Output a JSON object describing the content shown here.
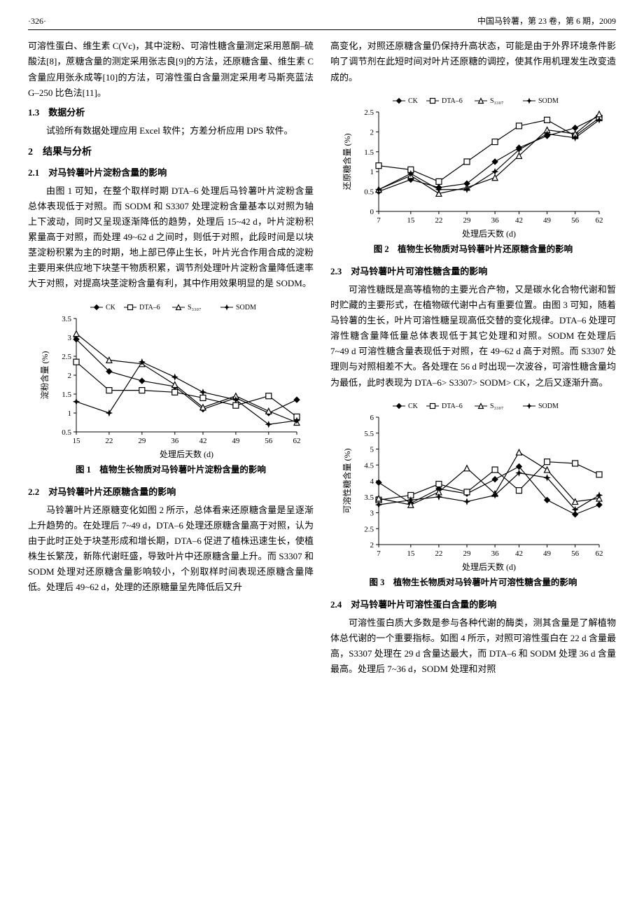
{
  "header": {
    "page_num": "·326·",
    "journal": "中国马铃薯，第 23 卷，第 6 期，2009"
  },
  "left": {
    "p1": "可溶性蛋白、维生素 C(Vc)，其中淀粉、可溶性糖含量测定采用蒽酮–硫酸法[8]，蔗糖含量的测定采用张志良[9]的方法，还原糖含量、维生素 C 含量应用张永成等[10]的方法，可溶性蛋白含量测定采用考马斯亮蓝法 G–250 比色法[11]。",
    "h13": "1.3　数据分析",
    "p2": "试验所有数据处理应用 Excel 软件；方差分析应用 DPS 软件。",
    "h2": "2　结果与分析",
    "h21": "2.1　对马铃薯叶片淀粉含量的影响",
    "p3": "由图 1 可知，在整个取样时期 DTA–6 处理后马铃薯叶片淀粉含量总体表现低于对照。而 SODM 和 S3307 处理淀粉含量基本以对照为轴上下波动，同时又呈现逐渐降低的趋势，处理后 15~42 d，叶片淀粉积累量高于对照，而处理 49~62 d 之间时，则低于对照，此段时间是以块茎淀粉积累为主的时期，地上部已停止生长，叶片光合作用合成的淀粉主要用来供应地下块茎干物质积累，调节剂处理叶片淀粉含量降低速率大于对照，对提高块茎淀粉含量有利，其中作用效果明显的是 SODM。",
    "fig1cap": "图 1　植物生长物质对马铃薯叶片淀粉含量的影响",
    "h22": "2.2　对马铃薯叶片还原糖含量的影响",
    "p4": "马铃薯叶片还原糖变化如图 2 所示，总体看来还原糖含量是呈逐渐上升趋势的。在处理后 7~49 d，DTA–6 处理还原糖含量高于对照，认为由于此时正处于块茎形成和增长期，DTA–6 促进了植株迅速生长，使植株生长繁茂，新陈代谢旺盛，导致叶片中还原糖含量上升。而 S3307 和 SODM 处理对还原糖含量影响较小，个别取样时间表现还原糖含量降低。处理后 49~62 d，处理的还原糖量呈先降低后又升"
  },
  "right": {
    "p1": "高变化，对照还原糖含量仍保持升高状态，可能是由于外界环境条件影响了调节剂在此短时间对叶片还原糖的调控，使其作用机理发生改变造成的。",
    "fig2cap": "图 2　植物生长物质对马铃薯叶片还原糖含量的影响",
    "h23": "2.3　对马铃薯叶片可溶性糖含量的影响",
    "p2": "可溶性糖既是高等植物的主要光合产物，又是碳水化合物代谢和暂时贮藏的主要形式，在植物碳代谢中占有重要位置。由图 3 可知，随着马铃薯的生长，叶片可溶性糖呈现高低交替的变化规律。DTA–6 处理可溶性糖含量降低量总体表现低于其它处理和对照。SODM 在处理后 7~49 d 可溶性糖含量表现低于对照，在 49~62 d 高于对照。而 S3307 处理则与对照相差不大。各处理在 56 d 时出现一次波谷，可溶性糖含量均为最低，此时表现为 DTA–6> S3307> SODM> CK，之后又逐渐升高。",
    "fig3cap": "图 3　植物生长物质对马铃薯叶片可溶性糖含量的影响",
    "h24": "2.4　对马铃薯叶片可溶性蛋白含量的影响",
    "p3": "可溶性蛋白质大多数是参与各种代谢的酶类，测其含量是了解植物体总代谢的一个重要指标。如图 4 所示，对照可溶性蛋白在 22 d 含量最高，S3307 处理在 29 d 含量达最大，而 DTA–6 和 SODM 处理 36 d 含量最高。处理后 7~36 d，SODM 处理和对照"
  },
  "legend": {
    "ck": "CK",
    "dta": "DTA–6",
    "s33": "S₃₃₀₇",
    "sod": "SODM"
  },
  "fig1": {
    "ylabel": "淀粉含量 (%)",
    "xlabel": "处理后天数 (d)",
    "xticks": [
      15,
      22,
      29,
      36,
      42,
      49,
      56,
      62
    ],
    "yticks": [
      0.5,
      1.0,
      1.5,
      2.0,
      2.5,
      3.0,
      3.5
    ],
    "ylim": [
      0.5,
      3.5
    ],
    "series": {
      "CK": [
        2.95,
        2.1,
        1.85,
        1.7,
        1.1,
        1.4,
        1.0,
        1.35
      ],
      "DTA": [
        2.35,
        1.6,
        1.6,
        1.55,
        1.4,
        1.2,
        1.45,
        0.9
      ],
      "S33": [
        3.1,
        2.4,
        2.3,
        1.75,
        1.15,
        1.45,
        1.05,
        0.75
      ],
      "SOD": [
        1.3,
        1.0,
        2.35,
        1.95,
        1.55,
        1.35,
        0.7,
        0.8
      ]
    },
    "markers": {
      "CK": "diamond",
      "DTA": "square",
      "S33": "triangle",
      "SOD": "star"
    },
    "color": "#000000",
    "bg": "#ffffff",
    "axis_fontsize": 11
  },
  "fig2": {
    "ylabel": "还原糖含量 (%)",
    "xlabel": "处理后天数 (d)",
    "xticks": [
      7,
      15,
      22,
      29,
      36,
      42,
      49,
      56,
      62
    ],
    "yticks": [
      0,
      0.5,
      1.0,
      1.5,
      2.0,
      2.5
    ],
    "ylim": [
      0,
      2.5
    ],
    "series": {
      "CK": [
        0.5,
        0.8,
        0.6,
        0.7,
        1.25,
        1.6,
        1.9,
        2.1,
        2.4
      ],
      "DTA": [
        1.15,
        1.05,
        0.75,
        1.25,
        1.75,
        2.15,
        2.3,
        1.9,
        2.35
      ],
      "S33": [
        0.55,
        0.9,
        0.45,
        0.6,
        0.85,
        1.4,
        2.05,
        1.95,
        2.45
      ],
      "SOD": [
        0.55,
        0.95,
        0.55,
        0.55,
        1.0,
        1.55,
        1.95,
        1.85,
        2.3
      ]
    },
    "markers": {
      "CK": "diamond",
      "DTA": "square",
      "S33": "triangle",
      "SOD": "star"
    },
    "color": "#000000",
    "bg": "#ffffff",
    "axis_fontsize": 11
  },
  "fig3": {
    "ylabel": "可溶性糖含量 (%)",
    "xlabel": "处理后天数 (d)",
    "xticks": [
      7,
      15,
      22,
      29,
      36,
      42,
      49,
      56,
      62
    ],
    "yticks": [
      2.0,
      2.5,
      3.0,
      3.5,
      4.0,
      4.5,
      5.0,
      5.5,
      6.0
    ],
    "ylim": [
      2.0,
      6.0
    ],
    "series": {
      "CK": [
        3.95,
        3.3,
        3.75,
        3.6,
        4.05,
        4.45,
        3.4,
        2.95,
        3.25
      ],
      "DTA": [
        3.4,
        3.55,
        3.9,
        3.65,
        4.35,
        3.7,
        4.6,
        4.55,
        4.2
      ],
      "S33": [
        3.45,
        3.25,
        3.65,
        4.4,
        3.6,
        4.9,
        4.35,
        3.35,
        3.45
      ],
      "SOD": [
        3.25,
        3.4,
        3.5,
        3.35,
        3.55,
        4.25,
        4.1,
        3.1,
        3.55
      ]
    },
    "markers": {
      "CK": "diamond",
      "DTA": "square",
      "S33": "triangle",
      "SOD": "star"
    },
    "color": "#000000",
    "bg": "#ffffff",
    "axis_fontsize": 11
  }
}
